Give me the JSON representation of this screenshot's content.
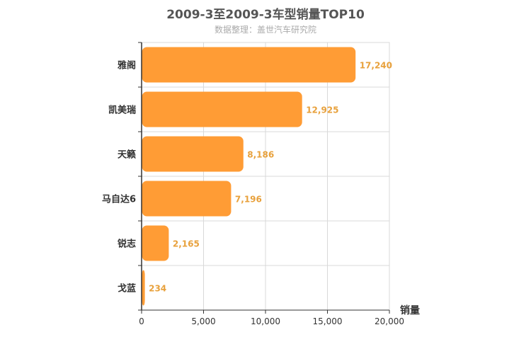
{
  "chart_data": {
    "type": "bar",
    "orientation": "horizontal",
    "title": "2009-3至2009-3车型销量TOP10",
    "subtitle": "数据整理：盖世汽车研究院",
    "categories": [
      "雅阁",
      "凯美瑞",
      "天籁",
      "马自达6",
      "锐志",
      "戈蓝"
    ],
    "values": [
      17240,
      12925,
      8186,
      7196,
      2165,
      234
    ],
    "value_labels": [
      "17,240",
      "12,925",
      "8,186",
      "7,196",
      "2,165",
      "234"
    ],
    "xlabel": "销量",
    "ylabel": "",
    "xlim": [
      0,
      20000
    ],
    "x_ticks": [
      0,
      5000,
      10000,
      15000,
      20000
    ],
    "x_tick_labels": [
      "0",
      "5,000",
      "10,000",
      "15,000",
      "20,000"
    ],
    "grid": true,
    "colors": {
      "bar": "#ff9c35",
      "value_text": "#e8a13c",
      "grid": "#d9d9d9",
      "axis": "#333333"
    }
  }
}
